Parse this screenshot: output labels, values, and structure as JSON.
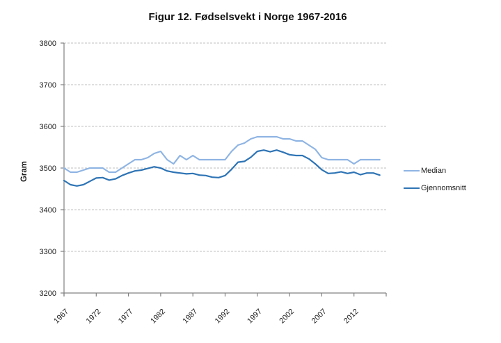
{
  "title": "Figur 12. Fødselsvekt i Norge 1967-2016",
  "colors": {
    "background": "#ffffff",
    "axis": "#808080",
    "grid": "#bfbfbf",
    "text": "#1a1a1a",
    "median_line": "#8EB4E3",
    "gjennomsnitt_line": "#2E74B5"
  },
  "legend": {
    "position": "right",
    "items": [
      {
        "label": "Median"
      },
      {
        "label": "Gjennomsnitt"
      }
    ]
  },
  "chart_data": {
    "type": "line",
    "title": "Figur 12. Fødselsvekt i Norge 1967-2016",
    "xlabel": "",
    "ylabel": "Gram",
    "ylim": [
      3200,
      3800
    ],
    "ytick_step": 100,
    "yticks": [
      3200,
      3300,
      3400,
      3500,
      3600,
      3700,
      3800
    ],
    "x_start": 1967,
    "x_end": 2016,
    "x_axis_end": 2017,
    "xticks": [
      1967,
      1972,
      1977,
      1982,
      1987,
      1992,
      1997,
      2002,
      2007,
      2012
    ],
    "grid": true,
    "legend_position": "right",
    "series": [
      {
        "name": "Median",
        "color": "#8EB4E3",
        "values": [
          3500,
          3490,
          3490,
          3495,
          3500,
          3500,
          3500,
          3490,
          3490,
          3500,
          3510,
          3520,
          3520,
          3525,
          3535,
          3540,
          3520,
          3510,
          3530,
          3520,
          3530,
          3520,
          3520,
          3520,
          3520,
          3520,
          3540,
          3555,
          3560,
          3570,
          3575,
          3575,
          3575,
          3575,
          3570,
          3570,
          3565,
          3565,
          3555,
          3545,
          3525,
          3520,
          3520,
          3520,
          3520,
          3510,
          3520,
          3520,
          3520,
          3520
        ]
      },
      {
        "name": "Gjennomsnitt",
        "color": "#2E74B5",
        "values": [
          3470,
          3460,
          3457,
          3460,
          3468,
          3476,
          3477,
          3471,
          3474,
          3482,
          3488,
          3493,
          3495,
          3499,
          3503,
          3500,
          3493,
          3490,
          3488,
          3486,
          3487,
          3483,
          3482,
          3478,
          3477,
          3482,
          3497,
          3514,
          3516,
          3526,
          3540,
          3543,
          3539,
          3543,
          3538,
          3532,
          3530,
          3530,
          3522,
          3510,
          3496,
          3487,
          3488,
          3491,
          3487,
          3490,
          3484,
          3488,
          3488,
          3483
        ]
      }
    ]
  }
}
